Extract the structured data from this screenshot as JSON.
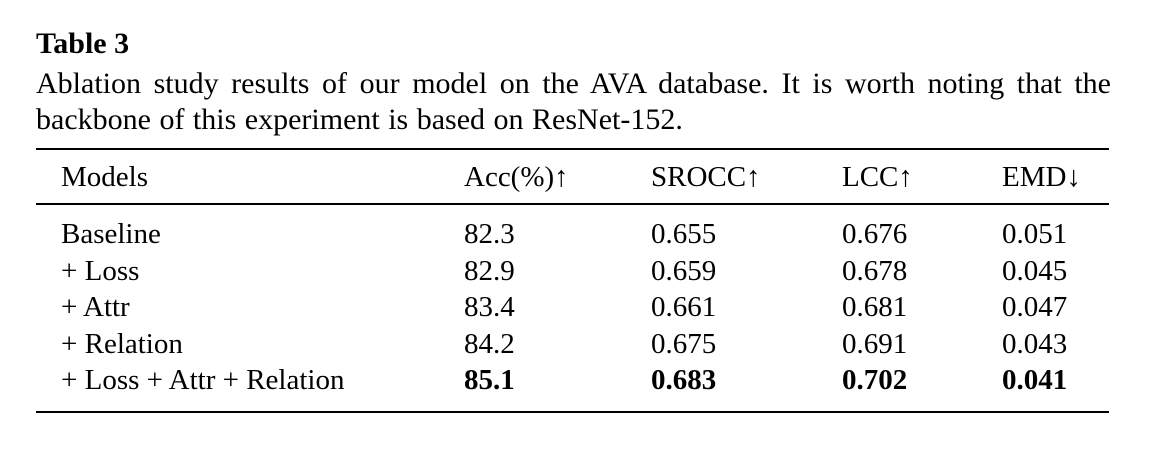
{
  "table": {
    "label": "Table 3",
    "caption": "Ablation study results of our model on the AVA database. It is worth noting that the backbone of this experiment is based on ResNet-152.",
    "columns": [
      "Models",
      "Acc(%)↑",
      "SROCC↑",
      "LCC↑",
      "EMD↓"
    ],
    "rows": [
      {
        "model": "Baseline",
        "acc": "82.3",
        "srocc": "0.655",
        "lcc": "0.676",
        "emd": "0.051",
        "bold": false
      },
      {
        "model": "+ Loss",
        "acc": "82.9",
        "srocc": "0.659",
        "lcc": "0.678",
        "emd": "0.045",
        "bold": false
      },
      {
        "model": "+ Attr",
        "acc": "83.4",
        "srocc": "0.661",
        "lcc": "0.681",
        "emd": "0.047",
        "bold": false
      },
      {
        "model": "+ Relation",
        "acc": "84.2",
        "srocc": "0.675",
        "lcc": "0.691",
        "emd": "0.043",
        "bold": false
      },
      {
        "model": "+ Loss + Attr + Relation",
        "acc": "85.1",
        "srocc": "0.683",
        "lcc": "0.702",
        "emd": "0.041",
        "bold": true
      }
    ],
    "colors": {
      "text": "#000000",
      "background": "#ffffff",
      "rule": "#000000"
    }
  }
}
